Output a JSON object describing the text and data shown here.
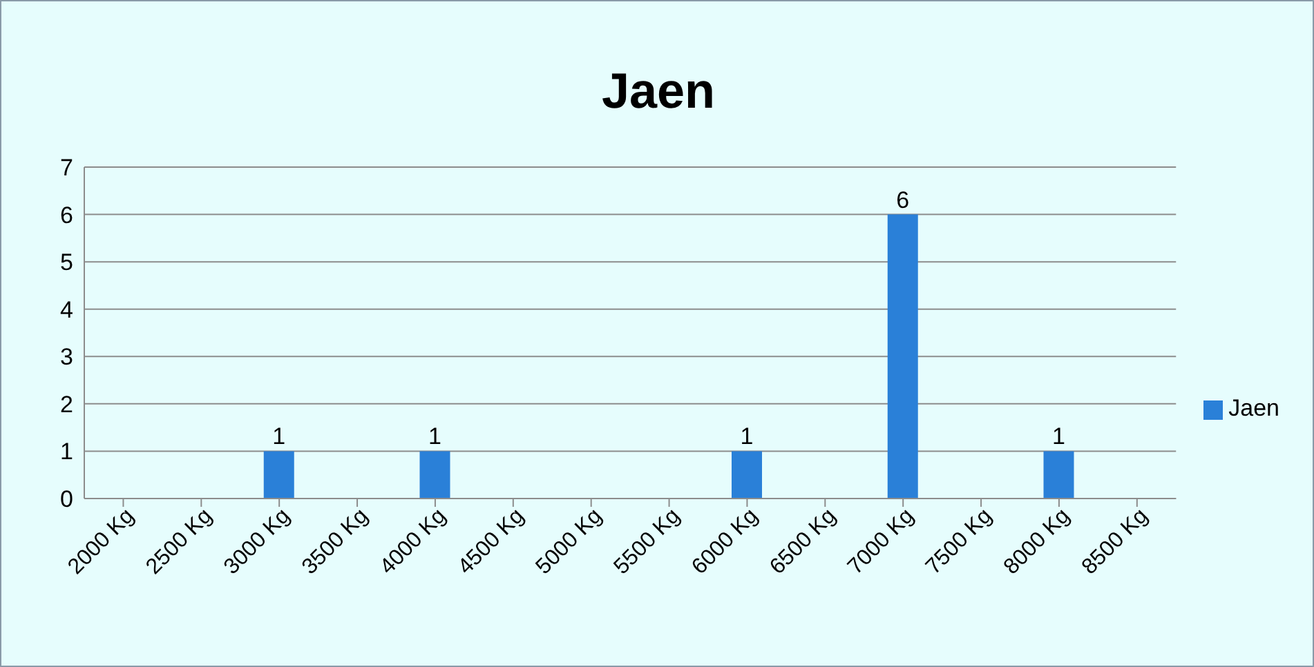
{
  "chart_data": {
    "type": "bar",
    "title": "Jaen",
    "categories": [
      "2000 Kg",
      "2500 Kg",
      "3000 Kg",
      "3500 Kg",
      "4000 Kg",
      "4500 Kg",
      "5000 Kg",
      "5500 Kg",
      "6000 Kg",
      "6500 Kg",
      "7000 Kg",
      "7500 Kg",
      "8000 Kg",
      "8500 Kg"
    ],
    "series": [
      {
        "name": "Jaen",
        "color": "#2a80d8",
        "values": [
          0,
          0,
          1,
          0,
          1,
          0,
          0,
          0,
          1,
          0,
          6,
          0,
          1,
          0
        ],
        "value_labels": [
          null,
          null,
          "1",
          null,
          "1",
          null,
          null,
          null,
          "1",
          null,
          "6",
          null,
          "1",
          null
        ]
      }
    ],
    "ylim": [
      0,
      7
    ],
    "yticks": [
      0,
      1,
      2,
      3,
      4,
      5,
      6,
      7
    ],
    "grid": "y",
    "legend": "right"
  }
}
